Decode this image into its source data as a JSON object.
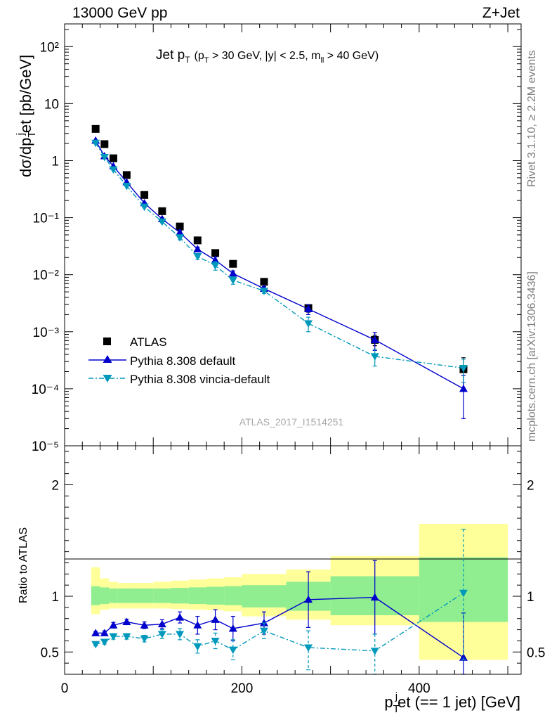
{
  "header": {
    "left": "13000 GeV pp",
    "right": "Z+Jet"
  },
  "plot_title": {
    "main": "Jet p",
    "sub": "T",
    "cond": "(p",
    "cond_sub": "T",
    "cond_rest": " > 30 GeV, |y| < 2.5, m",
    "cond_sub2": "ll",
    "cond_end": " > 40 GeV)"
  },
  "side_labels": {
    "rivet": "Rivet 3.1.10, ≥ 2.2M events",
    "mcplots": "mcplots.cern.ch [arXiv:1306.3436]"
  },
  "watermark": "ATLAS_2017_I1514251",
  "y_label_main": {
    "pre": "dσ/dp",
    "sub": "T",
    "sup": "j",
    "post": "et [pb/GeV]"
  },
  "y_label_ratio": "Ratio to ATLAS",
  "x_label": {
    "pre": "p",
    "sub": "T",
    "sup": "j",
    "post": "et (== 1 jet) [GeV]"
  },
  "legend": [
    {
      "label": "ATLAS",
      "color": "#000000",
      "marker": "square"
    },
    {
      "label": "Pythia 8.308 default",
      "color": "#0000cc",
      "marker": "triangle-up"
    },
    {
      "label": "Pythia 8.308 vincia-default",
      "color": "#0099bb",
      "marker": "triangle-down"
    }
  ],
  "chart_data": [
    {
      "type": "scatter",
      "panel": "main",
      "yscale": "log",
      "xlim": [
        0,
        515
      ],
      "ylim": [
        1e-05,
        250
      ],
      "x_ticks": [
        0,
        200,
        400
      ],
      "y_tick_labels": [
        "10⁻⁵",
        "10⁻⁴",
        "10⁻³",
        "10⁻²",
        "10⁻¹",
        "1",
        "10",
        "10²"
      ],
      "x": [
        35,
        45,
        55,
        70,
        90,
        110,
        130,
        150,
        170,
        190,
        225,
        275,
        350,
        450
      ],
      "xerr": [
        5,
        5,
        5,
        10,
        10,
        10,
        10,
        10,
        10,
        10,
        25,
        25,
        50,
        50
      ],
      "series": [
        {
          "name": "ATLAS",
          "color": "#000000",
          "values": [
            3.6,
            1.95,
            1.1,
            0.56,
            0.25,
            0.13,
            0.07,
            0.04,
            0.024,
            0.0155,
            0.0075,
            0.0026,
            0.00072,
            0.00022
          ],
          "err_up": [
            0.3,
            0.15,
            0.08,
            0.04,
            0.02,
            0.01,
            0.006,
            0.0035,
            0.002,
            0.0015,
            0.0008,
            0.0004,
            0.00015,
            0.00013
          ],
          "err_down": [
            0.3,
            0.15,
            0.08,
            0.04,
            0.02,
            0.01,
            0.006,
            0.0035,
            0.002,
            0.0015,
            0.0008,
            0.0004,
            0.00015,
            0.00013
          ]
        },
        {
          "name": "Pythia 8.308 default",
          "color": "#0000cc",
          "values": [
            2.25,
            1.2,
            0.8,
            0.42,
            0.18,
            0.095,
            0.055,
            0.028,
            0.018,
            0.0105,
            0.0057,
            0.0025,
            0.00072,
            0.0001
          ],
          "err_up": [
            0.05,
            0.03,
            0.02,
            0.01,
            0.006,
            0.004,
            0.004,
            0.0025,
            0.0025,
            0.0012,
            0.0005,
            0.0005,
            0.00025,
            7e-05
          ],
          "err_down": [
            0.05,
            0.03,
            0.02,
            0.01,
            0.006,
            0.004,
            0.004,
            0.0025,
            0.0025,
            0.0012,
            0.0005,
            0.0005,
            0.00025,
            7e-05
          ]
        },
        {
          "name": "Pythia 8.308 vincia-default",
          "color": "#0099bb",
          "values": [
            2.05,
            1.15,
            0.7,
            0.36,
            0.155,
            0.085,
            0.045,
            0.021,
            0.0145,
            0.008,
            0.0052,
            0.0014,
            0.00037,
            0.00023
          ],
          "err_up": [
            0.05,
            0.03,
            0.02,
            0.01,
            0.006,
            0.004,
            0.004,
            0.0025,
            0.0025,
            0.0012,
            0.0005,
            0.0004,
            0.00012,
            0.0001
          ],
          "err_down": [
            0.05,
            0.03,
            0.02,
            0.01,
            0.006,
            0.004,
            0.004,
            0.0025,
            0.0025,
            0.0012,
            0.0005,
            0.0004,
            0.00012,
            0.0001
          ]
        }
      ]
    },
    {
      "type": "line",
      "panel": "ratio",
      "xlim": [
        0,
        515
      ],
      "ylim": [
        0.3,
        2.35
      ],
      "x_ticks": [
        0,
        200,
        400
      ],
      "y_ticks": [
        0.5,
        1,
        2
      ],
      "y_tick_labels": [
        "0.5",
        "1",
        "2"
      ],
      "bands": {
        "x_low": [
          30,
          40,
          50,
          60,
          80,
          100,
          120,
          140,
          160,
          180,
          200,
          250,
          300,
          400
        ],
        "x_high": [
          40,
          50,
          60,
          80,
          100,
          120,
          140,
          160,
          180,
          200,
          250,
          300,
          400,
          500
        ],
        "stat": {
          "color": "#90ee90",
          "low": [
            0.92,
            0.93,
            0.94,
            0.94,
            0.94,
            0.94,
            0.935,
            0.93,
            0.925,
            0.92,
            0.9,
            0.87,
            0.83,
            0.77
          ],
          "high": [
            1.09,
            1.08,
            1.07,
            1.07,
            1.07,
            1.07,
            1.075,
            1.08,
            1.085,
            1.09,
            1.1,
            1.13,
            1.18,
            1.35
          ]
        },
        "total": {
          "color": "#ffff99",
          "low": [
            0.84,
            0.88,
            0.89,
            0.89,
            0.89,
            0.89,
            0.885,
            0.88,
            0.875,
            0.865,
            0.82,
            0.79,
            0.74,
            0.43
          ],
          "high": [
            1.26,
            1.16,
            1.13,
            1.12,
            1.12,
            1.13,
            1.14,
            1.15,
            1.16,
            1.17,
            1.2,
            1.24,
            1.36,
            1.65
          ]
        }
      },
      "x": [
        35,
        45,
        55,
        70,
        90,
        110,
        130,
        150,
        170,
        190,
        225,
        275,
        350,
        450
      ],
      "series": [
        {
          "name": "Pythia 8.308 default",
          "color": "#0000cc",
          "values": [
            0.67,
            0.67,
            0.74,
            0.77,
            0.74,
            0.75,
            0.81,
            0.74,
            0.79,
            0.71,
            0.76,
            0.97,
            0.99,
            0.45
          ],
          "err_up": [
            0.015,
            0.02,
            0.025,
            0.025,
            0.03,
            0.04,
            0.05,
            0.08,
            0.09,
            0.11,
            0.1,
            0.25,
            0.33,
            0.4
          ],
          "err_down": [
            0.015,
            0.02,
            0.025,
            0.025,
            0.03,
            0.04,
            0.05,
            0.08,
            0.09,
            0.11,
            0.1,
            0.25,
            0.33,
            0.4
          ]
        },
        {
          "name": "Pythia 8.308 vincia-default",
          "color": "#0099bb",
          "values": [
            0.57,
            0.59,
            0.64,
            0.64,
            0.62,
            0.66,
            0.66,
            0.55,
            0.6,
            0.52,
            0.69,
            0.54,
            0.51,
            1.03
          ],
          "err_up": [
            0.015,
            0.02,
            0.025,
            0.025,
            0.03,
            0.04,
            0.05,
            0.06,
            0.07,
            0.09,
            0.07,
            0.15,
            0.15,
            0.57
          ],
          "err_down": [
            0.015,
            0.02,
            0.025,
            0.025,
            0.03,
            0.04,
            0.05,
            0.06,
            0.07,
            0.09,
            0.07,
            0.2,
            0.25,
            0.6
          ]
        }
      ]
    }
  ]
}
